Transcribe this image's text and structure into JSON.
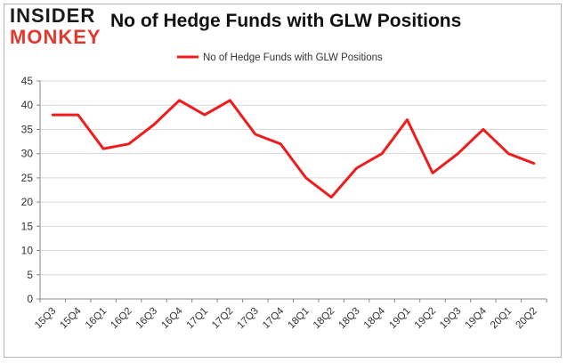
{
  "logo": {
    "line1": "INSIDER",
    "line2": "MONKEY"
  },
  "chart_data": {
    "type": "line",
    "title": "No of Hedge Funds with GLW Positions",
    "xlabel": "",
    "ylabel": "",
    "categories": [
      "15Q3",
      "15Q4",
      "16Q1",
      "16Q2",
      "16Q3",
      "16Q4",
      "17Q1",
      "17Q2",
      "17Q3",
      "17Q4",
      "18Q1",
      "18Q2",
      "18Q3",
      "18Q4",
      "19Q1",
      "19Q2",
      "19Q3",
      "19Q4",
      "20Q1",
      "20Q2"
    ],
    "series": [
      {
        "name": "No of Hedge Funds with GLW Positions",
        "color": "#ee1c1c",
        "values": [
          38,
          38,
          31,
          32,
          36,
          41,
          38,
          41,
          34,
          32,
          25,
          21,
          27,
          30,
          37,
          26,
          30,
          35,
          30,
          28
        ]
      }
    ],
    "ylim": [
      0,
      45
    ],
    "yticks": [
      0,
      5,
      10,
      15,
      20,
      25,
      30,
      35,
      40,
      45
    ],
    "grid": true,
    "legend_position": "top-center"
  }
}
